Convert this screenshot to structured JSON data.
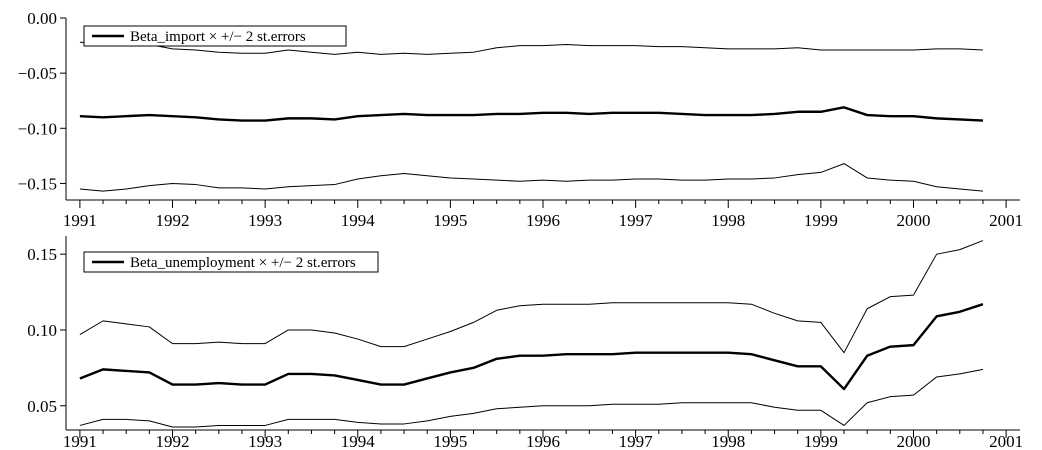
{
  "chart_data": [
    {
      "type": "line",
      "title": "",
      "xlabel": "",
      "ylabel": "",
      "legend": {
        "label": "Beta_import × +/− 2 st.errors",
        "placement": "top-left"
      },
      "xlim": [
        1990.85,
        2001.15
      ],
      "ylim": [
        -0.165,
        0.0
      ],
      "x_ticks": [
        1991,
        1992,
        1993,
        1994,
        1995,
        1996,
        1997,
        1998,
        1999,
        2000,
        2001
      ],
      "x_tick_labels": [
        "1991",
        "1992",
        "1993",
        "1994",
        "1995",
        "1996",
        "1997",
        "1998",
        "1999",
        "2000",
        "2001"
      ],
      "y_ticks": [
        0.0,
        -0.05,
        -0.1,
        -0.15
      ],
      "y_tick_labels": [
        "0.00",
        "−0.05",
        "−0.10",
        "−0.15"
      ],
      "x": [
        1991.0,
        1991.25,
        1991.5,
        1991.75,
        1992.0,
        1992.25,
        1992.5,
        1992.75,
        1993.0,
        1993.25,
        1993.5,
        1993.75,
        1994.0,
        1994.25,
        1994.5,
        1994.75,
        1995.0,
        1995.25,
        1995.5,
        1995.75,
        1996.0,
        1996.25,
        1996.5,
        1996.75,
        1997.0,
        1997.25,
        1997.5,
        1997.75,
        1998.0,
        1998.25,
        1998.5,
        1998.75,
        1999.0,
        1999.25,
        1999.5,
        1999.75,
        2000.0,
        2000.25,
        2000.5,
        2000.75
      ],
      "series": [
        {
          "role": "estimate",
          "values": [
            -0.089,
            -0.09,
            -0.089,
            -0.088,
            -0.089,
            -0.09,
            -0.092,
            -0.093,
            -0.093,
            -0.091,
            -0.091,
            -0.092,
            -0.089,
            -0.088,
            -0.087,
            -0.088,
            -0.088,
            -0.088,
            -0.087,
            -0.087,
            -0.086,
            -0.086,
            -0.087,
            -0.086,
            -0.086,
            -0.086,
            -0.087,
            -0.088,
            -0.088,
            -0.088,
            -0.087,
            -0.085,
            -0.085,
            -0.081,
            -0.088,
            -0.089,
            -0.089,
            -0.091,
            -0.092,
            -0.093
          ]
        },
        {
          "role": "upper band (+2 s.e.)",
          "values": [
            -0.022,
            -0.023,
            -0.022,
            -0.024,
            -0.028,
            -0.029,
            -0.031,
            -0.032,
            -0.032,
            -0.029,
            -0.031,
            -0.033,
            -0.031,
            -0.033,
            -0.032,
            -0.033,
            -0.032,
            -0.031,
            -0.027,
            -0.025,
            -0.025,
            -0.024,
            -0.025,
            -0.025,
            -0.025,
            -0.026,
            -0.026,
            -0.027,
            -0.028,
            -0.028,
            -0.028,
            -0.027,
            -0.029,
            -0.029,
            -0.029,
            -0.029,
            -0.029,
            -0.028,
            -0.028,
            -0.029
          ]
        },
        {
          "role": "lower band (−2 s.e.)",
          "values": [
            -0.155,
            -0.157,
            -0.155,
            -0.152,
            -0.15,
            -0.151,
            -0.154,
            -0.154,
            -0.155,
            -0.153,
            -0.152,
            -0.151,
            -0.146,
            -0.143,
            -0.141,
            -0.143,
            -0.145,
            -0.146,
            -0.147,
            -0.148,
            -0.147,
            -0.148,
            -0.147,
            -0.147,
            -0.146,
            -0.146,
            -0.147,
            -0.147,
            -0.146,
            -0.146,
            -0.145,
            -0.142,
            -0.14,
            -0.132,
            -0.145,
            -0.147,
            -0.148,
            -0.153,
            -0.155,
            -0.157
          ]
        }
      ]
    },
    {
      "type": "line",
      "title": "",
      "xlabel": "",
      "ylabel": "",
      "legend": {
        "label": "Beta_unemployment × +/−  2 st.errors",
        "placement": "top-left"
      },
      "xlim": [
        1990.85,
        2001.15
      ],
      "ylim": [
        0.034,
        0.162
      ],
      "x_ticks": [
        1991,
        1992,
        1993,
        1994,
        1995,
        1996,
        1997,
        1998,
        1999,
        2000,
        2001
      ],
      "x_tick_labels": [
        "1991",
        "1992",
        "1993",
        "1994",
        "1995",
        "1996",
        "1997",
        "1998",
        "1999",
        "2000",
        "2001"
      ],
      "y_ticks": [
        0.05,
        0.1,
        0.15
      ],
      "y_tick_labels": [
        "0.05",
        "0.10",
        "0.15"
      ],
      "x": [
        1991.0,
        1991.25,
        1991.5,
        1991.75,
        1992.0,
        1992.25,
        1992.5,
        1992.75,
        1993.0,
        1993.25,
        1993.5,
        1993.75,
        1994.0,
        1994.25,
        1994.5,
        1994.75,
        1995.0,
        1995.25,
        1995.5,
        1995.75,
        1996.0,
        1996.25,
        1996.5,
        1996.75,
        1997.0,
        1997.25,
        1997.5,
        1997.75,
        1998.0,
        1998.25,
        1998.5,
        1998.75,
        1999.0,
        1999.25,
        1999.5,
        1999.75,
        2000.0,
        2000.25,
        2000.5,
        2000.75
      ],
      "series": [
        {
          "role": "estimate",
          "values": [
            0.068,
            0.074,
            0.073,
            0.072,
            0.064,
            0.064,
            0.065,
            0.064,
            0.064,
            0.071,
            0.071,
            0.07,
            0.067,
            0.064,
            0.064,
            0.068,
            0.072,
            0.075,
            0.081,
            0.083,
            0.083,
            0.084,
            0.084,
            0.084,
            0.085,
            0.085,
            0.085,
            0.085,
            0.085,
            0.084,
            0.08,
            0.076,
            0.076,
            0.061,
            0.083,
            0.089,
            0.09,
            0.109,
            0.112,
            0.117
          ]
        },
        {
          "role": "upper band (+2 s.e.)",
          "values": [
            0.097,
            0.106,
            0.104,
            0.102,
            0.091,
            0.091,
            0.092,
            0.091,
            0.091,
            0.1,
            0.1,
            0.098,
            0.094,
            0.089,
            0.089,
            0.094,
            0.099,
            0.105,
            0.113,
            0.116,
            0.117,
            0.117,
            0.117,
            0.118,
            0.118,
            0.118,
            0.118,
            0.118,
            0.118,
            0.117,
            0.111,
            0.106,
            0.105,
            0.085,
            0.114,
            0.122,
            0.123,
            0.15,
            0.153,
            0.159
          ]
        },
        {
          "role": "lower band (−2 s.e.)",
          "values": [
            0.037,
            0.041,
            0.041,
            0.04,
            0.036,
            0.036,
            0.037,
            0.037,
            0.037,
            0.041,
            0.041,
            0.041,
            0.039,
            0.038,
            0.038,
            0.04,
            0.043,
            0.045,
            0.048,
            0.049,
            0.05,
            0.05,
            0.05,
            0.051,
            0.051,
            0.051,
            0.052,
            0.052,
            0.052,
            0.052,
            0.049,
            0.047,
            0.047,
            0.037,
            0.052,
            0.056,
            0.057,
            0.069,
            0.071,
            0.074
          ]
        }
      ]
    }
  ]
}
